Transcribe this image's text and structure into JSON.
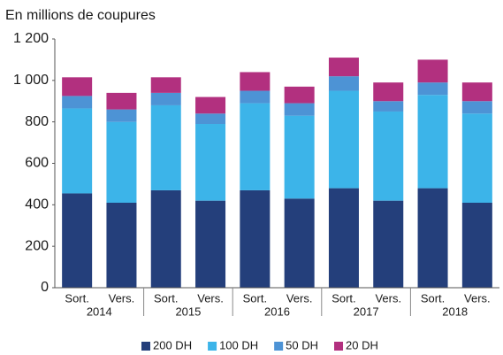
{
  "chart_data": {
    "type": "stacked_bar",
    "y_label": "En millions de coupures",
    "categories": [
      "Sort.",
      "Vers.",
      "Sort.",
      "Vers.",
      "Sort.",
      "Vers.",
      "Sort.",
      "Vers.",
      "Sort.",
      "Vers."
    ],
    "groups": [
      "2014",
      "2015",
      "2016",
      "2017",
      "2018"
    ],
    "series": [
      {
        "name": "200 DH",
        "color": "#243f7b",
        "values": [
          455,
          410,
          470,
          420,
          470,
          430,
          480,
          420,
          480,
          410
        ]
      },
      {
        "name": "100 DH",
        "color": "#3cb4e9",
        "values": [
          410,
          390,
          410,
          370,
          420,
          400,
          470,
          430,
          450,
          430
        ]
      },
      {
        "name": "50 DH",
        "color": "#4d93d5",
        "values": [
          60,
          60,
          60,
          50,
          60,
          60,
          70,
          50,
          60,
          60
        ]
      },
      {
        "name": "20 DH",
        "color": "#b2307f",
        "values": [
          90,
          80,
          75,
          80,
          90,
          80,
          90,
          90,
          110,
          90
        ]
      }
    ],
    "ylim": [
      0,
      1200
    ],
    "yticks": [
      0,
      200,
      400,
      600,
      800,
      {
        "value": 1000,
        "label": "1 000"
      },
      {
        "value": 1200,
        "label": "1 200"
      }
    ],
    "legend": "bottom"
  }
}
